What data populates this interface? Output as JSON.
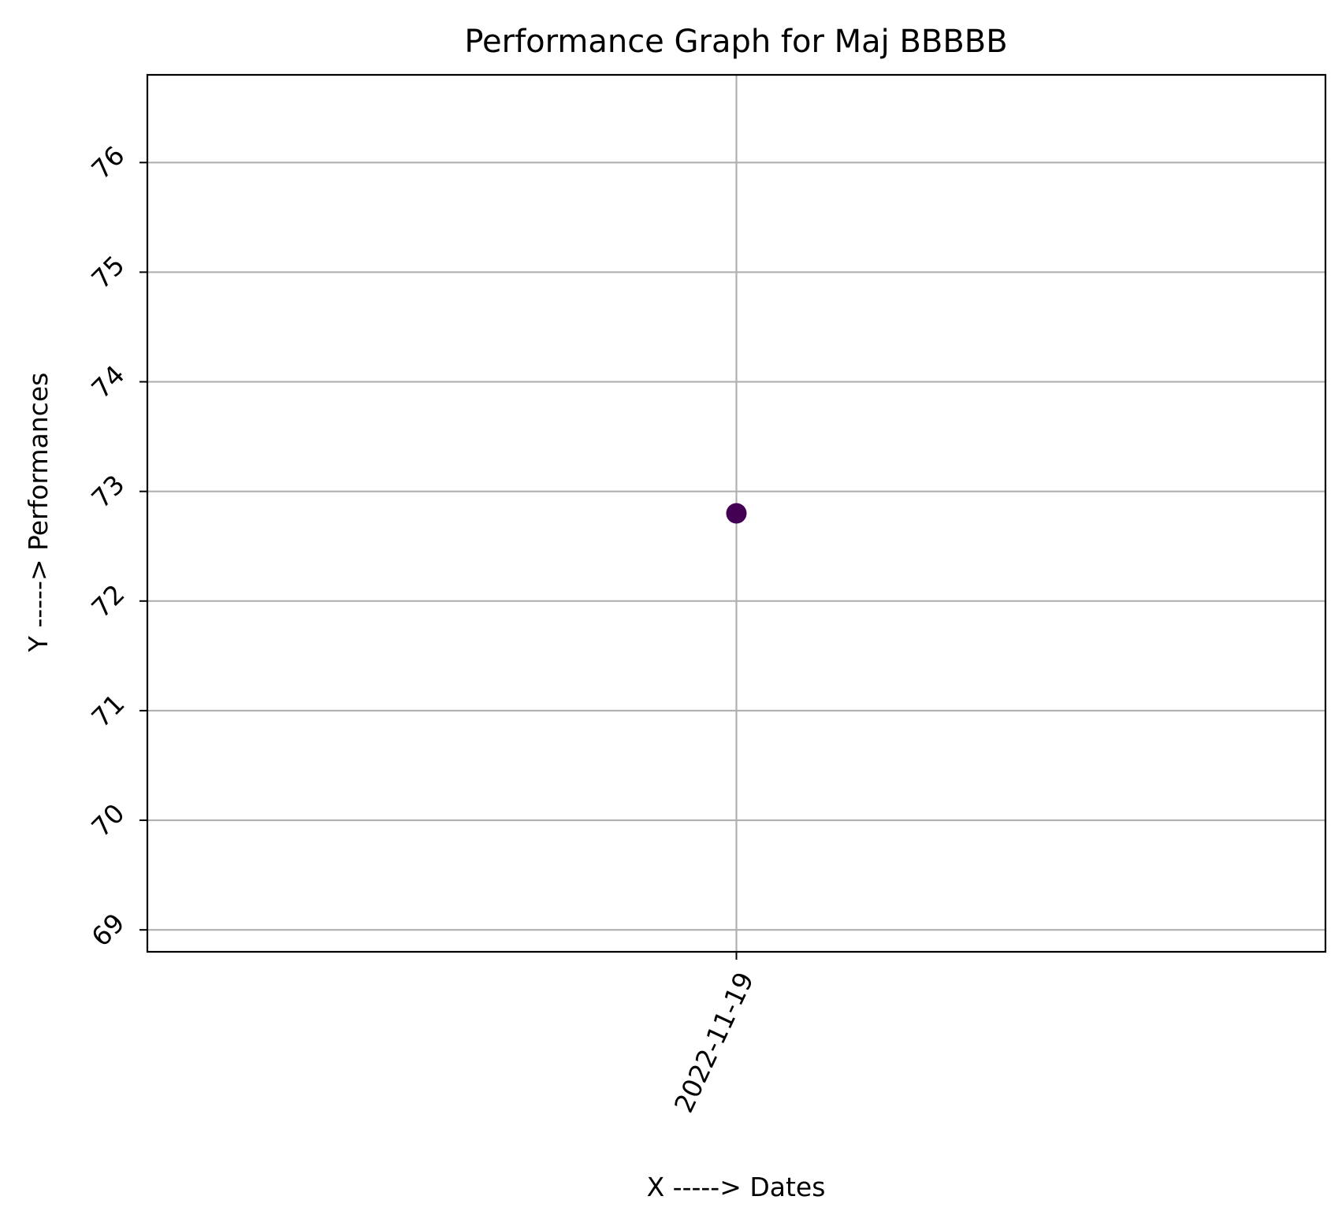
{
  "chart_data": {
    "type": "scatter",
    "title": "Performance Graph for Maj BBBBB",
    "xlabel": "X -----> Dates",
    "ylabel": "Y -----> Performances",
    "x_ticks": [
      "2022-11-19"
    ],
    "y_ticks": [
      69,
      70,
      71,
      72,
      73,
      74,
      75,
      76
    ],
    "ylim": [
      68.8,
      76.8
    ],
    "grid": true,
    "points": [
      {
        "x": "2022-11-19",
        "y": 72.8
      }
    ],
    "colors": {
      "marker": "#440154",
      "grid": "#b0b0b0",
      "axes": "#000000"
    }
  }
}
